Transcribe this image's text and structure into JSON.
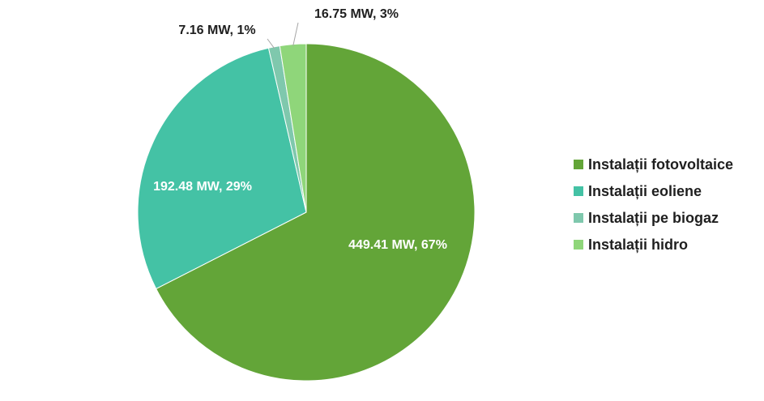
{
  "chart_data": {
    "type": "pie",
    "title": "",
    "unit": "MW",
    "legend_position": "right",
    "slices": [
      {
        "name": "Instalații fotovoltaice",
        "value": 449.41,
        "percent": 67,
        "label": "449.41 MW, 67%",
        "color": "#63a538",
        "label_color": "#ffffff"
      },
      {
        "name": "Instalații eoliene",
        "value": 192.48,
        "percent": 29,
        "label": "192.48 MW, 29%",
        "color": "#44c2a5",
        "label_color": "#ffffff"
      },
      {
        "name": "Instalații pe biogaz",
        "value": 7.16,
        "percent": 1,
        "label": "7.16 MW, 1%",
        "color": "#7fc8ad",
        "label_color": "#1f1f1f"
      },
      {
        "name": "Instalații hidro",
        "value": 16.75,
        "percent": 3,
        "label": "16.75 MW, 3%",
        "color": "#8fd67a",
        "label_color": "#1f1f1f"
      }
    ]
  }
}
